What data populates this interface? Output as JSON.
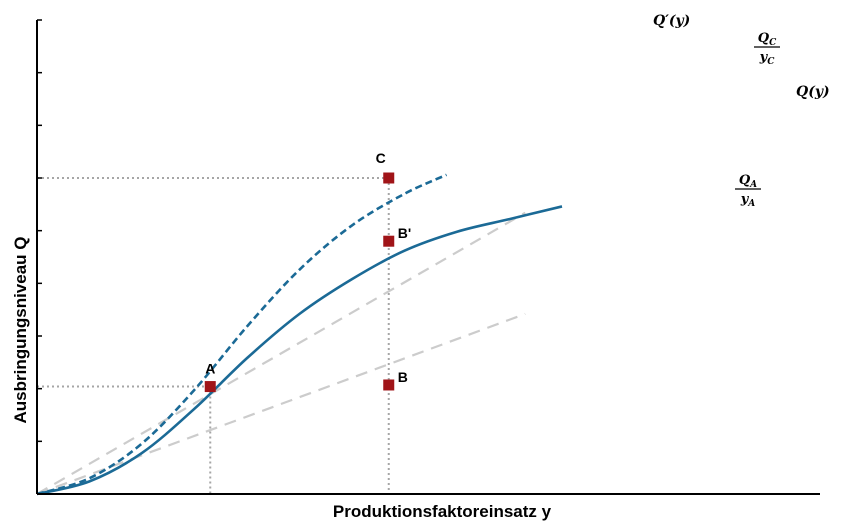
{
  "chart_data": {
    "type": "line",
    "xlabel": "Produktionsfaktoreinsatz y",
    "ylabel": "Ausbringungsniveau Q",
    "xlim": [
      0,
      10
    ],
    "ylim": [
      0,
      10
    ],
    "grid": false,
    "y_tick_count": 9,
    "series": [
      {
        "name": "Q(y)",
        "style": "solid",
        "color": "#1b6a96",
        "x": [
          0,
          1,
          2,
          3,
          4,
          5,
          6,
          7,
          8,
          9,
          10
        ],
        "y": [
          0,
          0.4,
          1.3,
          2.7,
          4.3,
          5.7,
          6.8,
          7.7,
          8.3,
          8.7,
          9.1
        ]
      },
      {
        "name": "Q'(y)",
        "style": "dashed",
        "color": "#1b6a96",
        "x": [
          0,
          1,
          2,
          3,
          4,
          5,
          6,
          7,
          7.8
        ],
        "y": [
          0,
          0.5,
          1.6,
          3.3,
          5.3,
          7.1,
          8.5,
          9.5,
          10.1
        ]
      },
      {
        "name": "Q_C/y_C",
        "style": "dashed",
        "color": "#cccccc",
        "x": [
          0,
          9.3
        ],
        "y": [
          0,
          8.9
        ]
      },
      {
        "name": "Q_A/y_A",
        "style": "dashed",
        "color": "#cccccc",
        "x": [
          0,
          9.3
        ],
        "y": [
          0,
          5.7
        ]
      }
    ],
    "points": [
      {
        "label": "A",
        "x": 3.3,
        "y": 3.4,
        "label_pos": "above"
      },
      {
        "label": "B",
        "x": 6.7,
        "y": 3.45,
        "label_pos": "right"
      },
      {
        "label": "B'",
        "x": 6.7,
        "y": 8.0,
        "label_pos": "right"
      },
      {
        "label": "C",
        "x": 6.7,
        "y": 10.0,
        "label_pos": "above-left"
      }
    ],
    "guide_lines": [
      {
        "from_point": "A",
        "to_axes": [
          "x",
          "y"
        ]
      },
      {
        "from_point": "C",
        "to_axes": [
          "y"
        ]
      },
      {
        "vertical_from": "C",
        "to_axis": "x"
      }
    ],
    "annotations": [
      {
        "series": "Q(y)",
        "main": "Q",
        "suffix": "(y)"
      },
      {
        "series": "Q'(y)",
        "main": "Q′",
        "suffix": "(y)"
      },
      {
        "series": "Q_C/y_C",
        "num": "Q",
        "num_sub": "C",
        "den": "y",
        "den_sub": "C"
      },
      {
        "series": "Q_A/y_A",
        "num": "Q",
        "num_sub": "A",
        "den": "y",
        "den_sub": "A"
      }
    ]
  },
  "colors": {
    "curve": "#1b6a96",
    "ray": "#cccccc",
    "guide": "#a6a6a6",
    "marker": "#a01418",
    "axis": "#000000"
  }
}
